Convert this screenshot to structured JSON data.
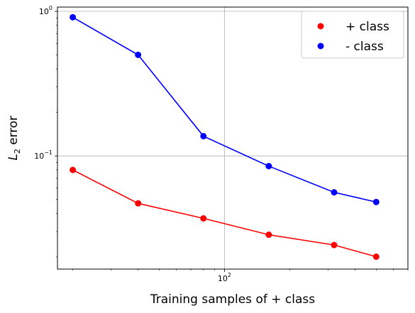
{
  "chart_data": {
    "type": "line",
    "x_scale": "log",
    "y_scale": "log",
    "xlabel": "Training samples of + class",
    "ylabel_main": "L",
    "ylabel_sub": "2",
    "ylabel_rest": " error",
    "xlim": [
      17,
      700
    ],
    "ylim": [
      0.0165,
      1.07
    ],
    "x": [
      20,
      40,
      80,
      160,
      320,
      500
    ],
    "x_ticks": [
      {
        "value": 100,
        "base": "10",
        "exp": "2"
      }
    ],
    "y_ticks": [
      {
        "value": 1,
        "base": "10",
        "exp": "0"
      },
      {
        "value": 0.1,
        "base": "10",
        "exp": "−1"
      }
    ],
    "grid": true,
    "legend_position": "top-right",
    "series": [
      {
        "name": "+ class",
        "color": "#ff0000",
        "values": [
          0.08,
          0.047,
          0.037,
          0.0285,
          0.0242,
          0.0201
        ]
      },
      {
        "name": "-  class",
        "color": "#0000ff",
        "values": [
          0.91,
          0.5,
          0.137,
          0.085,
          0.056,
          0.048
        ]
      }
    ]
  }
}
